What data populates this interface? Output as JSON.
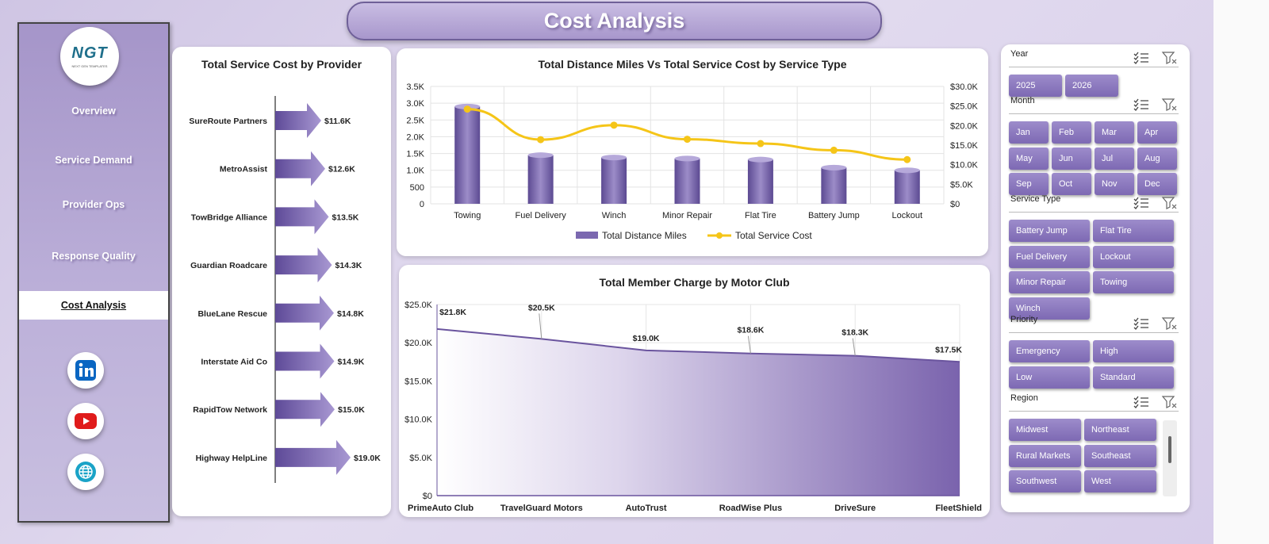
{
  "page_title": "Cost Analysis",
  "logo": {
    "text": "NGT",
    "subtext": "NEXT GEN TEMPLATES"
  },
  "nav": [
    "Overview",
    "Service Demand",
    "Provider Ops",
    "Response Quality",
    "Cost Analysis"
  ],
  "active_nav": "Cost Analysis",
  "social": [
    "linkedin-icon",
    "youtube-icon",
    "globe-icon"
  ],
  "colors": {
    "accent": "#7b68b0",
    "line": "#f5c518",
    "banner": "#b3a4d6"
  },
  "chart_data": [
    {
      "type": "bar",
      "title": "Total Service Cost by Provider",
      "orientation": "horizontal",
      "categories": [
        "SureRoute Partners",
        "MetroAssist",
        "TowBridge Alliance",
        "Guardian Roadcare",
        "BlueLane Rescue",
        "Interstate Aid Co",
        "RapidTow Network",
        "Highway HelpLine"
      ],
      "values": [
        11.6,
        12.6,
        13.5,
        14.3,
        14.8,
        14.9,
        15.0,
        19.0
      ],
      "labels": [
        "$11.6K",
        "$12.6K",
        "$13.5K",
        "$14.3K",
        "$14.8K",
        "$14.9K",
        "$15.0K",
        "$19.0K"
      ],
      "unit": "$K"
    },
    {
      "type": "bar",
      "title": "Total Distance Miles Vs Total Service Cost by Service Type",
      "categories": [
        "Towing",
        "Fuel Delivery",
        "Winch",
        "Minor Repair",
        "Flat Tire",
        "Battery Jump",
        "Lockout"
      ],
      "series": [
        {
          "name": "Total Distance Miles",
          "type": "bar",
          "axis": "left",
          "values": [
            2900,
            1450,
            1380,
            1350,
            1320,
            1080,
            1000
          ]
        },
        {
          "name": "Total Service Cost",
          "type": "line",
          "axis": "right",
          "values": [
            24200,
            16400,
            20100,
            16500,
            15400,
            13700,
            11300
          ]
        }
      ],
      "y_left_ticks": [
        "0",
        "500",
        "1.0K",
        "1.5K",
        "2.0K",
        "2.5K",
        "3.0K",
        "3.5K"
      ],
      "ylim_left": [
        0,
        3500
      ],
      "y_right_ticks": [
        "$0",
        "$5.0K",
        "$10.0K",
        "$15.0K",
        "$20.0K",
        "$25.0K",
        "$30.0K"
      ],
      "ylim_right": [
        0,
        30000
      ],
      "grid": true,
      "legend": "bottom"
    },
    {
      "type": "area",
      "title": "Total Member Charge by Motor Club",
      "categories": [
        "PrimeAuto Club",
        "TravelGuard Motors",
        "AutoTrust",
        "RoadWise Plus",
        "DriveSure",
        "FleetShield"
      ],
      "values": [
        21800,
        20500,
        19000,
        18600,
        18300,
        17500
      ],
      "labels": [
        "$21.8K",
        "$20.5K",
        "$19.0K",
        "$18.6K",
        "$18.3K",
        "$17.5K"
      ],
      "y_ticks": [
        "$0",
        "$5.0K",
        "$10.0K",
        "$15.0K",
        "$20.0K",
        "$25.0K"
      ],
      "ylim": [
        0,
        25000
      ],
      "grid": true
    }
  ],
  "slicers": [
    {
      "title": "Year",
      "items": [
        "2025",
        "2026"
      ]
    },
    {
      "title": "Month",
      "items": [
        "Jan",
        "Feb",
        "Mar",
        "Apr",
        "May",
        "Jun",
        "Jul",
        "Aug",
        "Sep",
        "Oct",
        "Nov",
        "Dec"
      ]
    },
    {
      "title": "Service Type",
      "items": [
        "Battery Jump",
        "Flat Tire",
        "Fuel Delivery",
        "Lockout",
        "Minor Repair",
        "Towing",
        "Winch"
      ]
    },
    {
      "title": "Priority",
      "items": [
        "Emergency",
        "High",
        "Low",
        "Standard"
      ]
    },
    {
      "title": "Region",
      "items": [
        "Midwest",
        "Northeast",
        "Rural Markets",
        "Southeast",
        "Southwest",
        "West"
      ]
    }
  ]
}
